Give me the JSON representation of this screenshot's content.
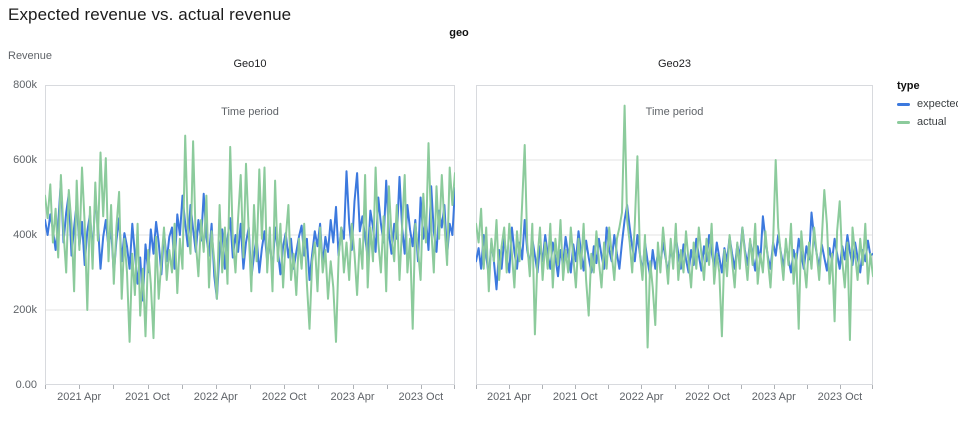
{
  "page": {
    "title": "Expected revenue vs. actual revenue"
  },
  "colors": {
    "expected": "#3c79de",
    "actual": "#8ccb9c",
    "grid": "#e3e3e3",
    "plot_border": "#d8dade",
    "tick_text": "#5f6368"
  },
  "chart_data": {
    "type": "line",
    "title": "Expected revenue vs. actual revenue",
    "facet_field": "geo",
    "values_unit": "thousands (k) of Revenue",
    "x": {
      "label": "Time period",
      "months_total": 36,
      "start": "2021 Jan",
      "end": "2023 Dec",
      "ticks": [
        {
          "month": 0,
          "label": ""
        },
        {
          "month": 3,
          "label": "2021 Apr"
        },
        {
          "month": 6,
          "label": ""
        },
        {
          "month": 9,
          "label": "2021 Oct"
        },
        {
          "month": 12,
          "label": ""
        },
        {
          "month": 15,
          "label": "2022 Apr"
        },
        {
          "month": 18,
          "label": ""
        },
        {
          "month": 21,
          "label": "2022 Oct"
        },
        {
          "month": 24,
          "label": ""
        },
        {
          "month": 27,
          "label": "2023 Apr"
        },
        {
          "month": 30,
          "label": ""
        },
        {
          "month": 33,
          "label": "2023 Oct"
        },
        {
          "month": 36,
          "label": ""
        }
      ]
    },
    "y": {
      "label": "Revenue",
      "max": 800,
      "tick_values": [
        0,
        200,
        400,
        600,
        800
      ],
      "tick_labels": [
        "0.00",
        "200k",
        "400k",
        "600k",
        "800k"
      ],
      "grid_values": [
        200,
        400,
        600
      ]
    },
    "legend": {
      "title": "type",
      "items": [
        {
          "label": "expected",
          "color": "#3c79de"
        },
        {
          "label": "actual",
          "color": "#8ccb9c"
        }
      ]
    },
    "facets": [
      {
        "name": "Geo10",
        "series": [
          {
            "name": "expected",
            "values": [
              440,
              400,
              455,
              415,
              360,
              430,
              545,
              380,
              460,
              510,
              345,
              420,
              485,
              370,
              435,
              320,
              410,
              455,
              350,
              500,
              430,
              310,
              395,
              440,
              365,
              420,
              295,
              385,
              445,
              330,
              405,
              370,
              310,
              430,
              350,
              270,
              340,
              225,
              375,
              300,
              415,
              350,
              435,
              380,
              295,
              410,
              330,
              395,
              420,
              310,
              455,
              400,
              505,
              430,
              370,
              480,
              415,
              355,
              440,
              385,
              510,
              395,
              345,
              430,
              290,
              230,
              360,
              415,
              310,
              390,
              445,
              340,
              400,
              355,
              430,
              310,
              380,
              420,
              285,
              345,
              395,
              300,
              365,
              410,
              330,
              385,
              300,
              420,
              360,
              295,
              370,
              405,
              340,
              390,
              310,
              355,
              395,
              425,
              345,
              390,
              280,
              350,
              410,
              370,
              430,
              320,
              395,
              355,
              440,
              380,
              475,
              345,
              420,
              390,
              570,
              430,
              360,
              490,
              565,
              410,
              450,
              395,
              340,
              465,
              420,
              355,
              500,
              430,
              380,
              545,
              405,
              350,
              430,
              390,
              555,
              420,
              350,
              480,
              415,
              370,
              440,
              330,
              500,
              390,
              445,
              360,
              530,
              410,
              355,
              465,
              420,
              480,
              345,
              430,
              400,
              525
            ]
          },
          {
            "name": "actual",
            "values": [
              505,
              445,
              535,
              380,
              470,
              340,
              560,
              410,
              300,
              520,
              430,
              250,
              545,
              360,
              580,
              430,
              200,
              475,
              310,
              540,
              385,
              620,
              450,
              605,
              330,
              480,
              270,
              420,
              515,
              230,
              390,
              300,
              115,
              350,
              240,
              430,
              185,
              310,
              130,
              360,
              270,
              125,
              395,
              230,
              330,
              420,
              280,
              360,
              300,
              430,
              245,
              390,
              310,
              665,
              420,
              350,
              650,
              380,
              290,
              440,
              355,
              505,
              260,
              410,
              330,
              230,
              480,
              300,
              420,
              270,
              635,
              390,
              300,
              445,
              560,
              340,
              590,
              410,
              250,
              480,
              330,
              575,
              390,
              580,
              300,
              420,
              250,
              545,
              330,
              430,
              260,
              390,
              480,
              280,
              350,
              240,
              390,
              310,
              430,
              270,
              150,
              330,
              380,
              250,
              420,
              300,
              360,
              230,
              330,
              260,
              115,
              340,
              420,
              300,
              380,
              280,
              430,
              350,
              240,
              390,
              310,
              560,
              260,
              420,
              330,
              580,
              380,
              300,
              450,
              250,
              530,
              400,
              330,
              480,
              280,
              420,
              560,
              300,
              390,
              150,
              430,
              360,
              280,
              510,
              380,
              645,
              420,
              300,
              530,
              390,
              560,
              430,
              320,
              580,
              480,
              565
            ]
          }
        ]
      },
      {
        "name": "Geo23",
        "series": [
          {
            "name": "expected",
            "values": [
              330,
              365,
              310,
              400,
              345,
              290,
              380,
              330,
              255,
              360,
              310,
              390,
              340,
              300,
              420,
              355,
              310,
              380,
              335,
              440,
              360,
              320,
              390,
              345,
              300,
              370,
              330,
              400,
              350,
              310,
              380,
              340,
              290,
              360,
              320,
              395,
              350,
              300,
              375,
              330,
              410,
              355,
              305,
              385,
              340,
              300,
              370,
              325,
              390,
              345,
              310,
              420,
              360,
              330,
              400,
              350,
              310,
              380,
              440,
              480,
              420,
              370,
              330,
              400,
              350,
              300,
              380,
              330,
              290,
              360,
              310,
              350,
              320,
              380,
              340,
              300,
              365,
              330,
              395,
              350,
              310,
              375,
              335,
              300,
              360,
              320,
              390,
              345,
              305,
              370,
              330,
              400,
              355,
              315,
              380,
              340,
              300,
              365,
              330,
              395,
              350,
              310,
              375,
              340,
              420,
              360,
              320,
              385,
              345,
              305,
              370,
              330,
              450,
              390,
              340,
              310,
              380,
              345,
              400,
              355,
              315,
              375,
              335,
              300,
              360,
              325,
              390,
              350,
              310,
              370,
              335,
              460,
              395,
              350,
              315,
              375,
              340,
              305,
              365,
              330,
              390,
              350,
              310,
              370,
              335,
              400,
              355,
              320,
              380,
              340,
              300,
              360,
              330,
              385,
              345,
              350
            ]
          },
          {
            "name": "actual",
            "values": [
              430,
              380,
              470,
              310,
              420,
              250,
              390,
              330,
              440,
              280,
              370,
              420,
              300,
              430,
              350,
              260,
              410,
              330,
              480,
              640,
              380,
              290,
              430,
              135,
              340,
              420,
              280,
              380,
              310,
              430,
              260,
              390,
              320,
              440,
              280,
              360,
              300,
              420,
              340,
              260,
              390,
              310,
              430,
              280,
              185,
              350,
              300,
              410,
              330,
              260,
              380,
              310,
              420,
              350,
              280,
              390,
              420,
              460,
              745,
              440,
              380,
              300,
              430,
              610,
              350,
              280,
              400,
              100,
              330,
              260,
              160,
              380,
              300,
              420,
              350,
              270,
              390,
              310,
              430,
              280,
              360,
              300,
              410,
              330,
              260,
              380,
              310,
              420,
              350,
              280,
              390,
              320,
              430,
              270,
              350,
              300,
              130,
              360,
              290,
              400,
              330,
              260,
              380,
              310,
              420,
              350,
              280,
              390,
              320,
              430,
              270,
              350,
              300,
              410,
              330,
              260,
              380,
              600,
              420,
              350,
              280,
              390,
              320,
              430,
              270,
              350,
              150,
              410,
              330,
              260,
              380,
              310,
              420,
              350,
              280,
              390,
              520,
              430,
              270,
              350,
              170,
              410,
              490,
              330,
              260,
              380,
              120,
              420,
              350,
              280,
              390,
              320,
              430,
              270,
              350,
              290
            ]
          }
        ]
      }
    ]
  }
}
